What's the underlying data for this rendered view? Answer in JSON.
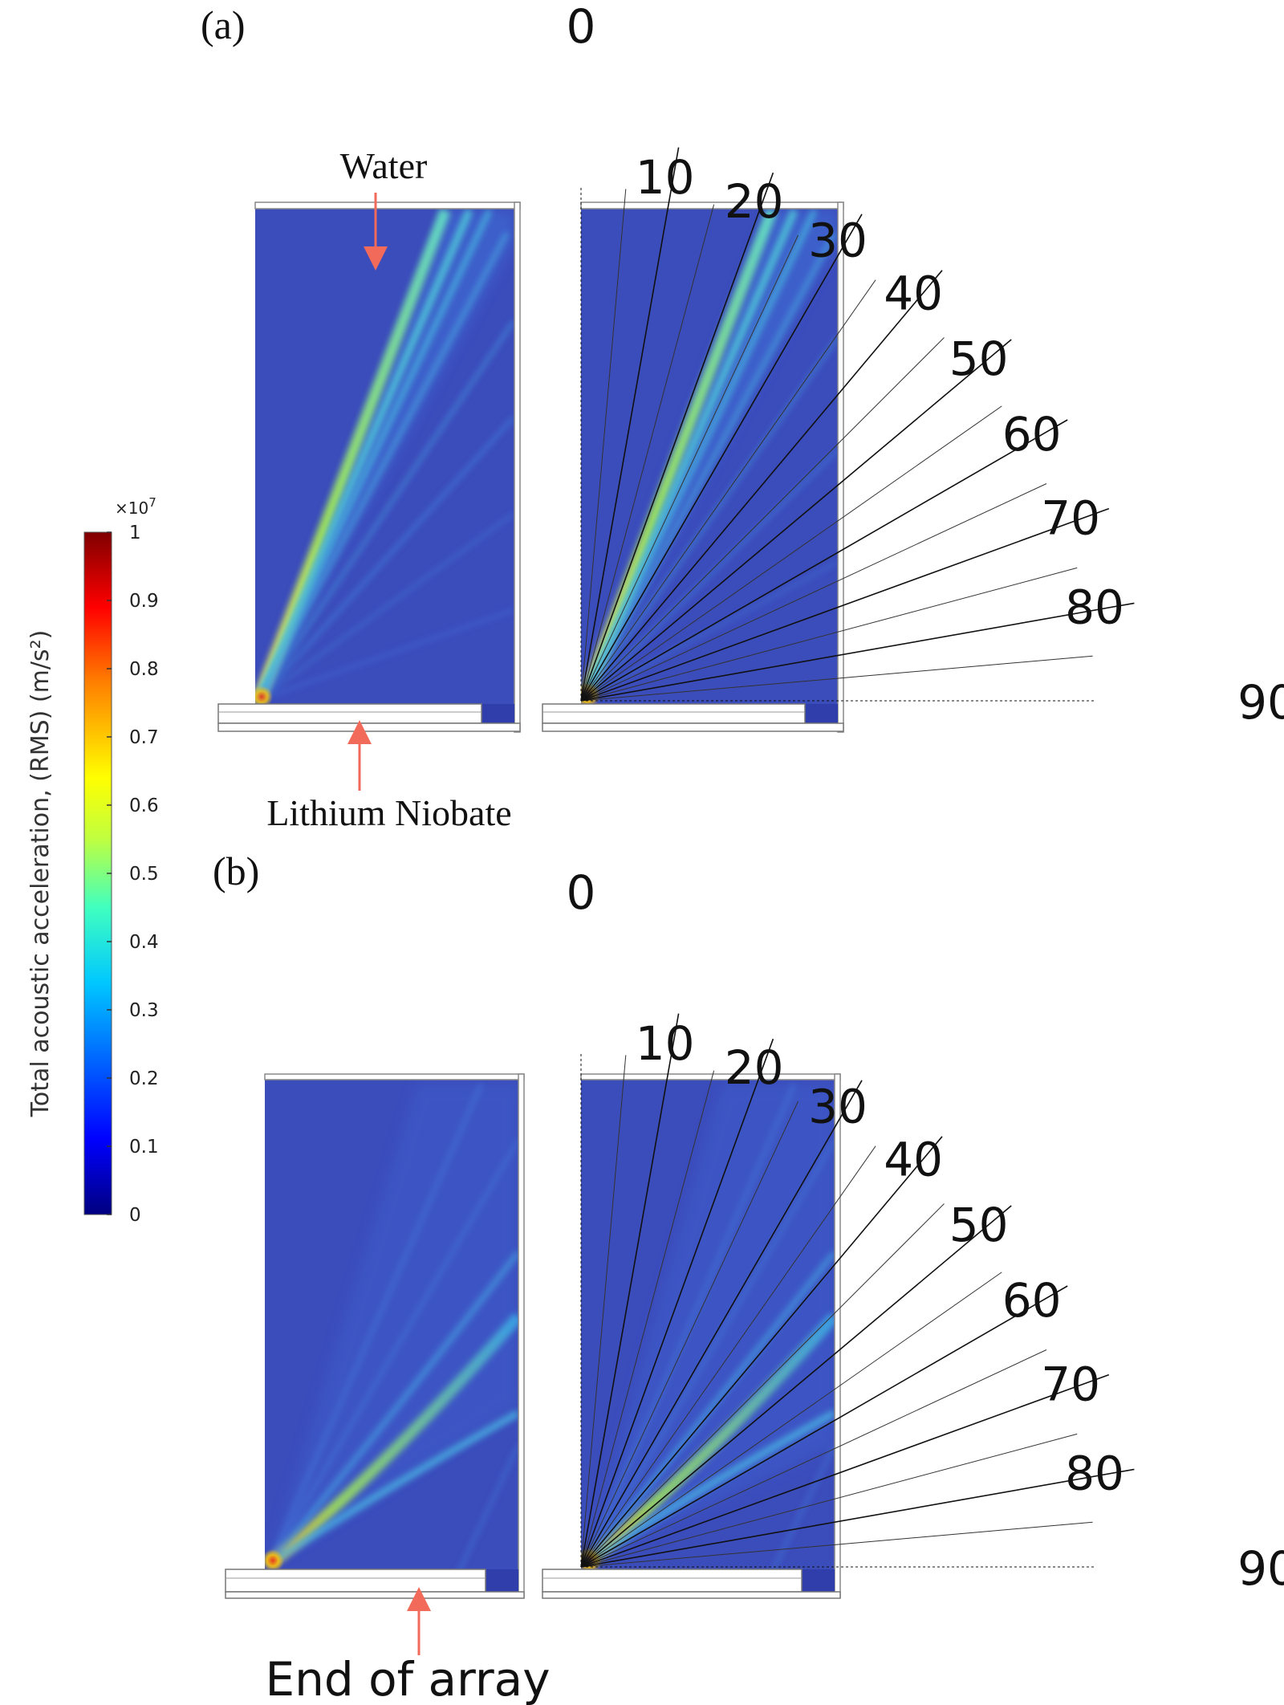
{
  "colorbar": {
    "title": "Total acoustic acceleration, (RMS) (m/s²)",
    "exponent_base": "×10",
    "exponent_power": "7",
    "ticks": [
      "1",
      "0.9",
      "0.8",
      "0.7",
      "0.6",
      "0.5",
      "0.4",
      "0.3",
      "0.2",
      "0.1",
      "0"
    ],
    "stops": [
      "#00007f",
      "#0000ff",
      "#007fff",
      "#00ffff",
      "#7fff7f",
      "#ffff00",
      "#ff7f00",
      "#ff0000",
      "#7f0000"
    ]
  },
  "panel_a": {
    "label": "(a)",
    "water_label": "Water",
    "substrate_label": "Lithium Niobate"
  },
  "panel_b": {
    "label": "(b)",
    "end_label": "End of array"
  },
  "angle_labels": [
    "0",
    "10",
    "20",
    "30",
    "40",
    "50",
    "60",
    "70",
    "80",
    "90"
  ],
  "colors": {
    "field_base": "#3a4ab8",
    "arrow": "#f26a5a",
    "beam_a": "#8fe08a",
    "beam_b": "#6fc9e0"
  }
}
